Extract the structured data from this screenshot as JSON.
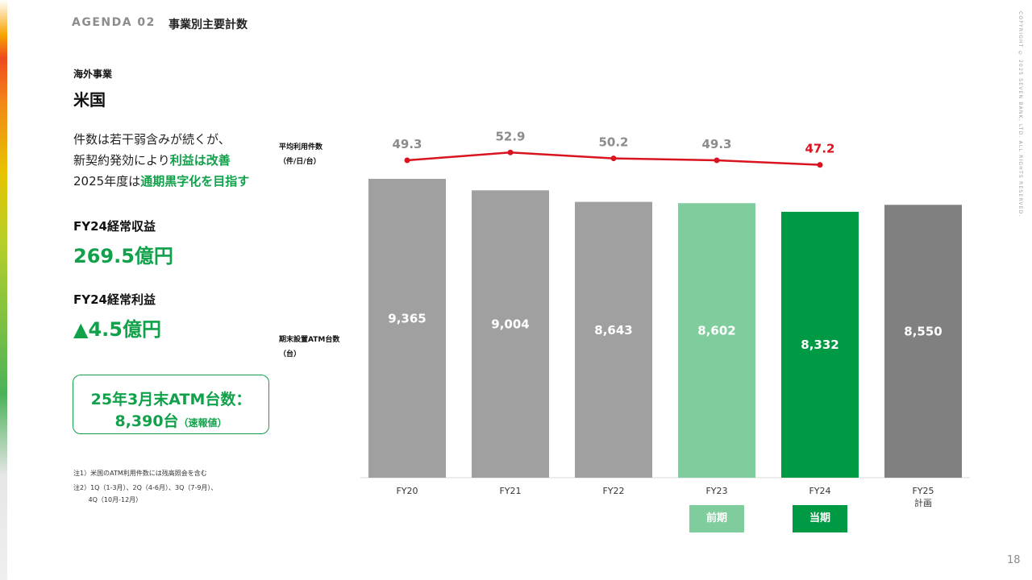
{
  "header": {
    "agenda": "AGENDA 02",
    "title": "事業別主要計数",
    "copyright": "COPYRIGHT © 2025 SEVEN BANK, LTD. ALL RIGHTS RESERVED."
  },
  "left_panel": {
    "section": "海外事業",
    "region": "米国",
    "summary_lines": [
      {
        "pre": "件数は若干弱含みが続くが、",
        "hl": "",
        "post": ""
      },
      {
        "pre": "新契約発効により",
        "hl": "利益は改善",
        "post": ""
      },
      {
        "pre": "2025年度は",
        "hl": "通期黒字化を目指す",
        "post": ""
      }
    ],
    "kpi1_label": "FY24経常収益",
    "kpi1_value": "269.5億円",
    "kpi2_label": "FY24経常利益",
    "kpi2_value": "▲4.5億円",
    "atm_box_line1": "25年3月末ATM台数：",
    "atm_box_line2_main": "8,390台",
    "atm_box_line2_note": "（速報値）",
    "notes": [
      "注1）米国のATM利用件数には残高照会を含む",
      "注2）1Q（1-3月）、2Q（4-6月）、3Q（7-9月）、",
      "　　 4Q（10月-12月）"
    ]
  },
  "chart_data": {
    "type": "bar",
    "categories": [
      "FY20",
      "FY21",
      "FY22",
      "FY23",
      "FY24",
      "FY25\n計画"
    ],
    "bar_axis_label": "期末設置ATM台数（台）",
    "bar_values": [
      9365,
      9004,
      8643,
      8602,
      8332,
      8550
    ],
    "bar_value_labels": [
      "9,365",
      "9,004",
      "8,643",
      "8,602",
      "8,332",
      "8,550"
    ],
    "bar_colors": [
      "#a0a0a0",
      "#a0a0a0",
      "#a0a0a0",
      "#7fcc9d",
      "#009a44",
      "#808080"
    ],
    "line_axis_label": "平均利用件数（件/日/台）",
    "line_values": [
      49.3,
      52.9,
      50.2,
      49.3,
      47.2
    ],
    "line_color": "#d9141e",
    "tags": [
      {
        "label": "前期",
        "category_index": 3,
        "color": "#7fcc9d"
      },
      {
        "label": "当期",
        "category_index": 4,
        "color": "#009a44"
      }
    ]
  },
  "page_number": "18"
}
